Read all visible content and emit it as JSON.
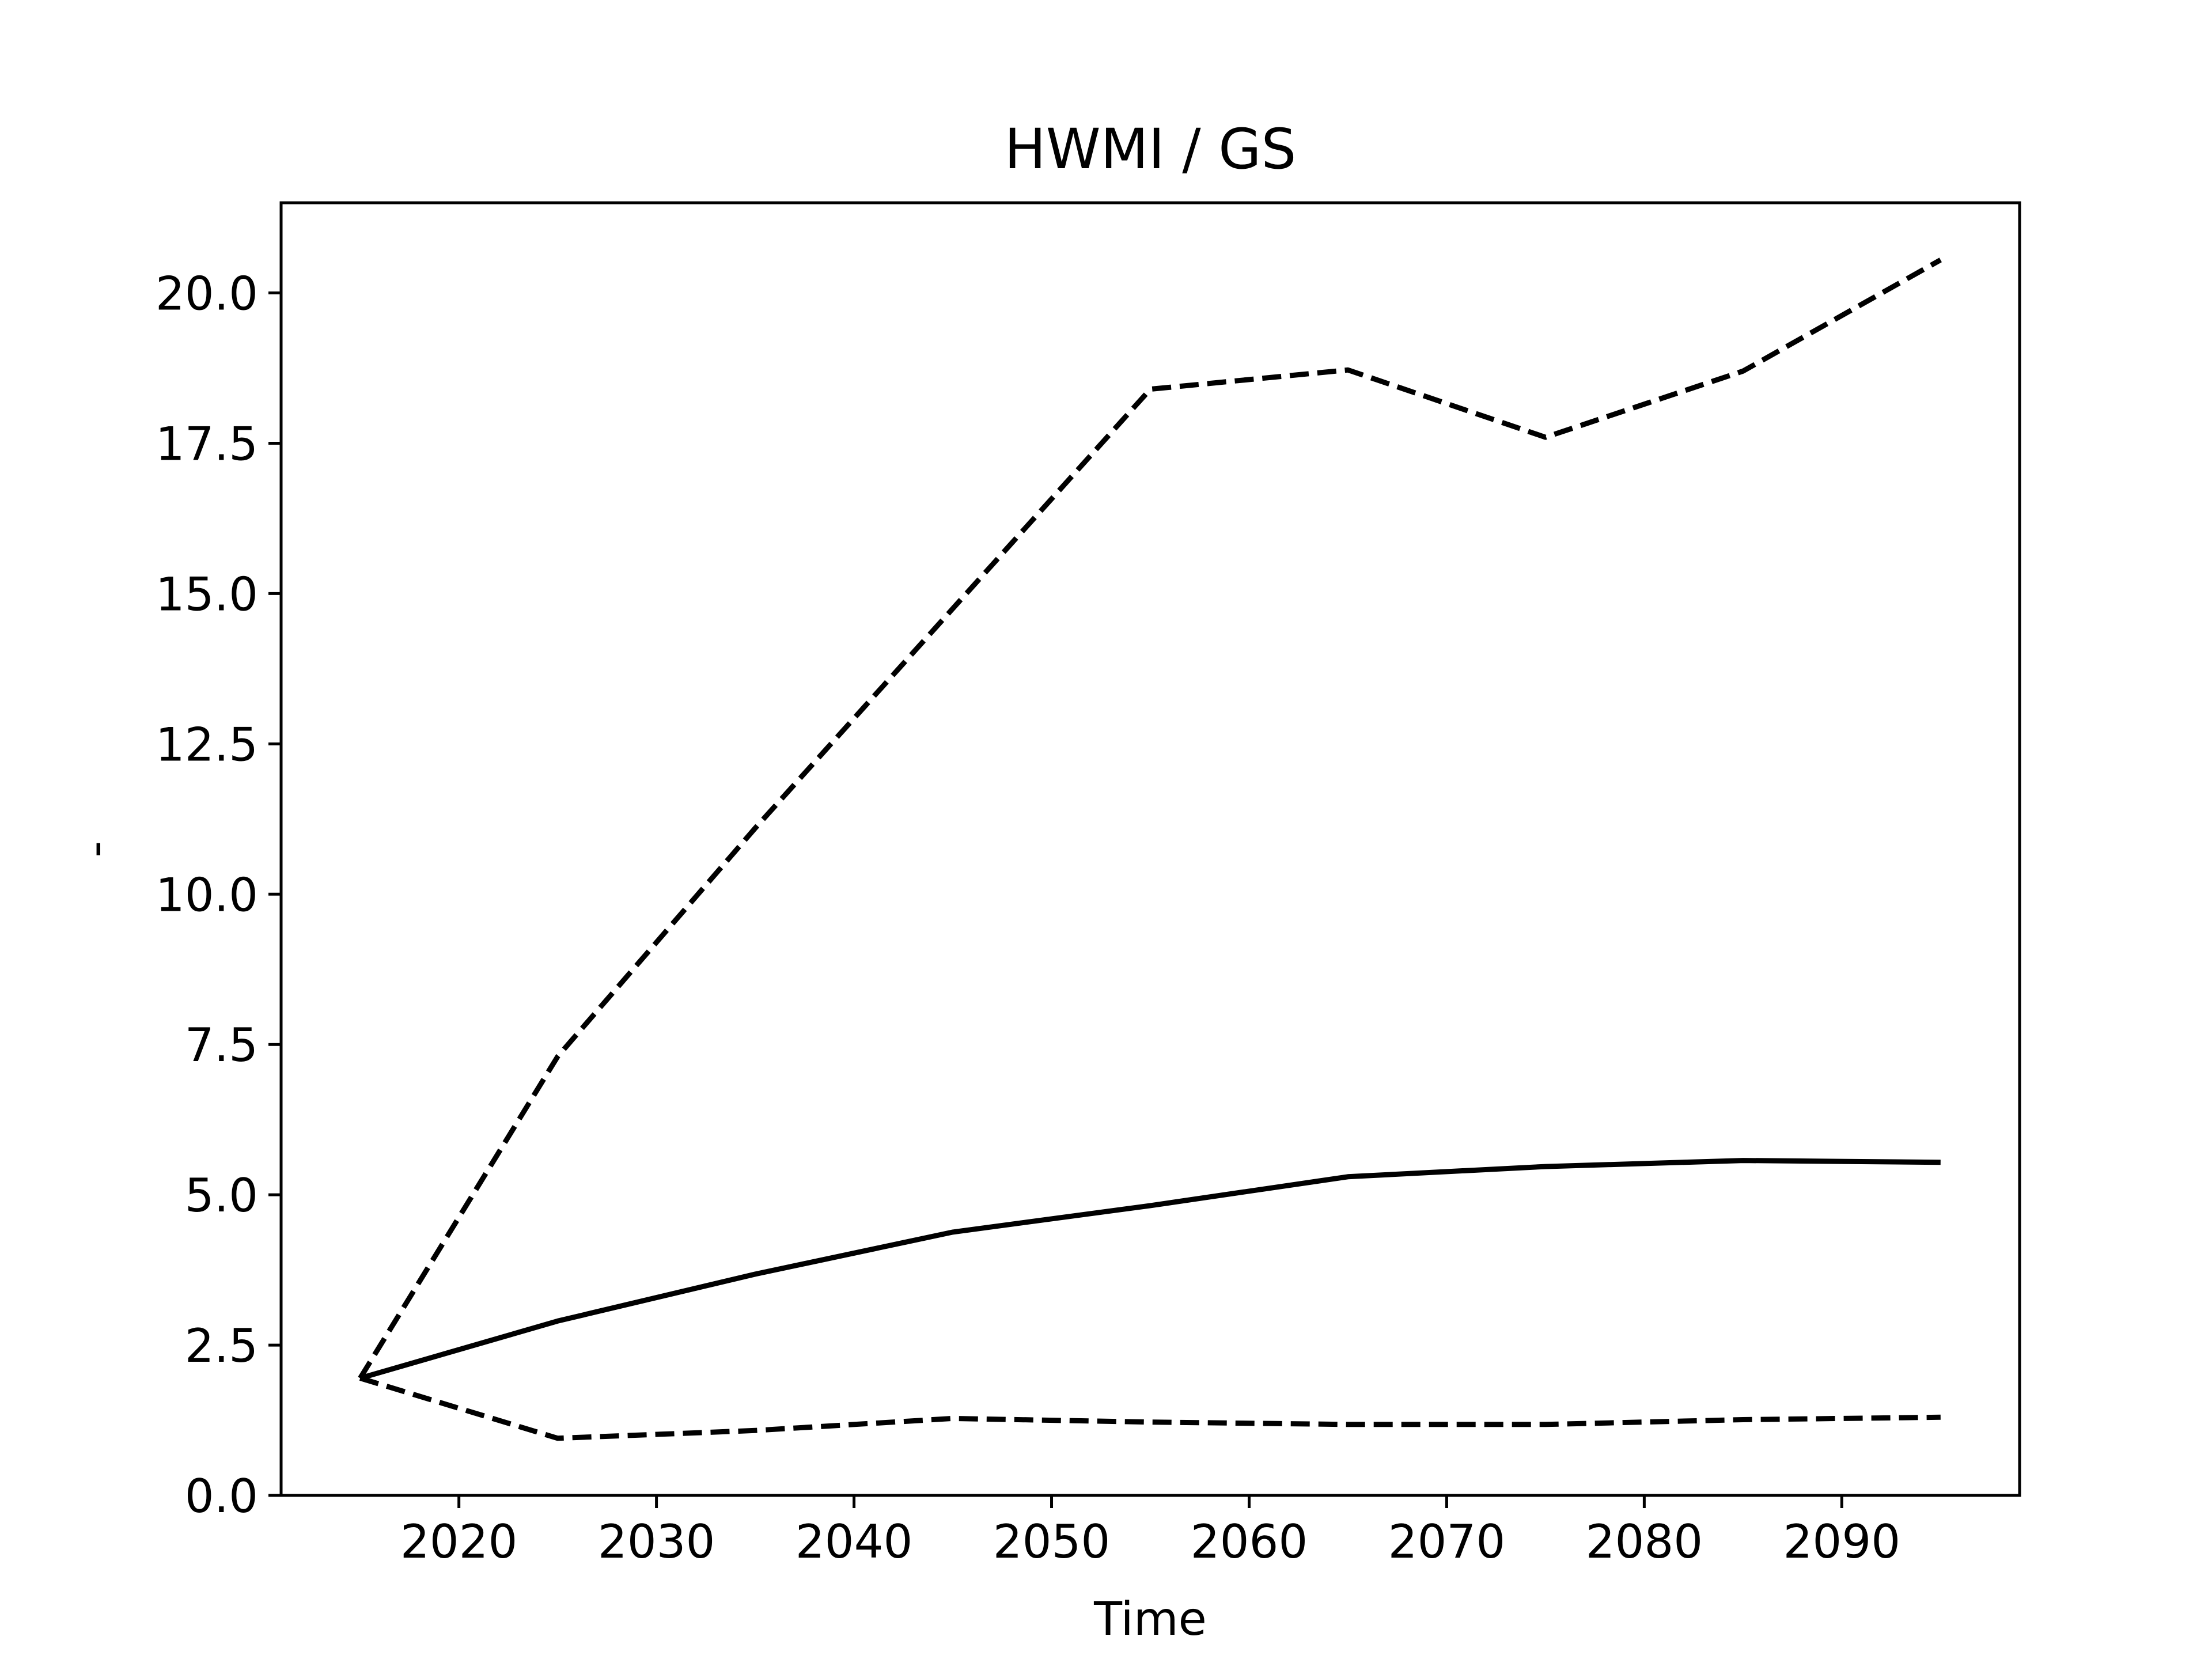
{
  "chart_data": {
    "type": "line",
    "title": "HWMI / GS",
    "xlabel": "Time",
    "ylabel": "-",
    "xlim": [
      2011,
      2099
    ],
    "ylim": [
      0,
      21.5
    ],
    "xticks": [
      2020,
      2030,
      2040,
      2050,
      2060,
      2070,
      2080,
      2090
    ],
    "xtick_labels": [
      "2020",
      "2030",
      "2040",
      "2050",
      "2060",
      "2070",
      "2080",
      "2090"
    ],
    "yticks": [
      0,
      2.5,
      5,
      7.5,
      10,
      12.5,
      15,
      17.5,
      20
    ],
    "ytick_labels": [
      "0.0",
      "2.5",
      "5.0",
      "7.5",
      "10.0",
      "12.5",
      "15.0",
      "17.5",
      "20.0"
    ],
    "grid": false,
    "legend": false,
    "x": [
      2015,
      2025,
      2035,
      2045,
      2055,
      2065,
      2075,
      2085,
      2095
    ],
    "series": [
      {
        "style": "solid",
        "color": "#000000",
        "values": [
          1.95,
          2.9,
          3.68,
          4.38,
          4.82,
          5.3,
          5.47,
          5.57,
          5.54
        ]
      },
      {
        "style": "dashed",
        "color": "#000000",
        "values": [
          1.95,
          7.3,
          11.1,
          14.75,
          18.4,
          18.72,
          17.6,
          18.7,
          20.55
        ]
      },
      {
        "style": "dashed",
        "color": "#000000",
        "values": [
          1.95,
          0.95,
          1.08,
          1.28,
          1.22,
          1.18,
          1.18,
          1.26,
          1.3
        ]
      }
    ]
  }
}
